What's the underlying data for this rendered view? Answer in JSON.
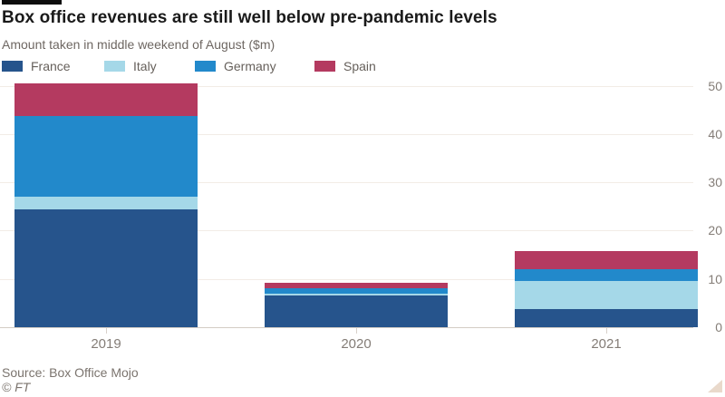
{
  "header": {
    "title": "Box office revenues are still well below pre-pandemic levels",
    "subtitle": "Amount taken in middle weekend of August ($m)"
  },
  "legend": [
    {
      "label": "France",
      "color": "#26548C"
    },
    {
      "label": "Italy",
      "color": "#A5D8E8"
    },
    {
      "label": "Germany",
      "color": "#2289CB"
    },
    {
      "label": "Spain",
      "color": "#B43A60"
    }
  ],
  "chart_data": {
    "type": "bar",
    "stacked": true,
    "title": "Box office revenues are still well below pre-pandemic levels",
    "subtitle": "Amount taken in middle weekend of August ($m)",
    "categories": [
      "2019",
      "2020",
      "2021"
    ],
    "series": [
      {
        "name": "France",
        "color": "#26548C",
        "values": [
          24.4,
          6.5,
          3.7
        ]
      },
      {
        "name": "Italy",
        "color": "#A5D8E8",
        "values": [
          2.6,
          0.5,
          5.8
        ]
      },
      {
        "name": "Germany",
        "color": "#2289CB",
        "values": [
          16.7,
          1.0,
          2.5
        ]
      },
      {
        "name": "Spain",
        "color": "#B43A60",
        "values": [
          6.8,
          1.2,
          3.7
        ]
      }
    ],
    "totals": [
      50.5,
      9.2,
      15.7
    ],
    "ylim": [
      0,
      50
    ],
    "yticks": [
      0,
      10,
      20,
      30,
      40,
      50
    ],
    "grid": "horizontal",
    "legend_position": "top",
    "y_axis_side": "right",
    "xlabel": "",
    "ylabel": "$m"
  },
  "colors": {
    "background": "#ffffff",
    "top_rule": "#0d0d0d",
    "title_text": "#1a1a1a",
    "muted_text": "#6e6762",
    "axis_text": "#847d77",
    "gridline": "#f2ece6",
    "baseline": "#d4ccc4"
  },
  "footer": {
    "source": "Source: Box Office Mojo",
    "credit": "© FT"
  },
  "icons": {
    "resize_handle": "triangle-bottom-right"
  }
}
